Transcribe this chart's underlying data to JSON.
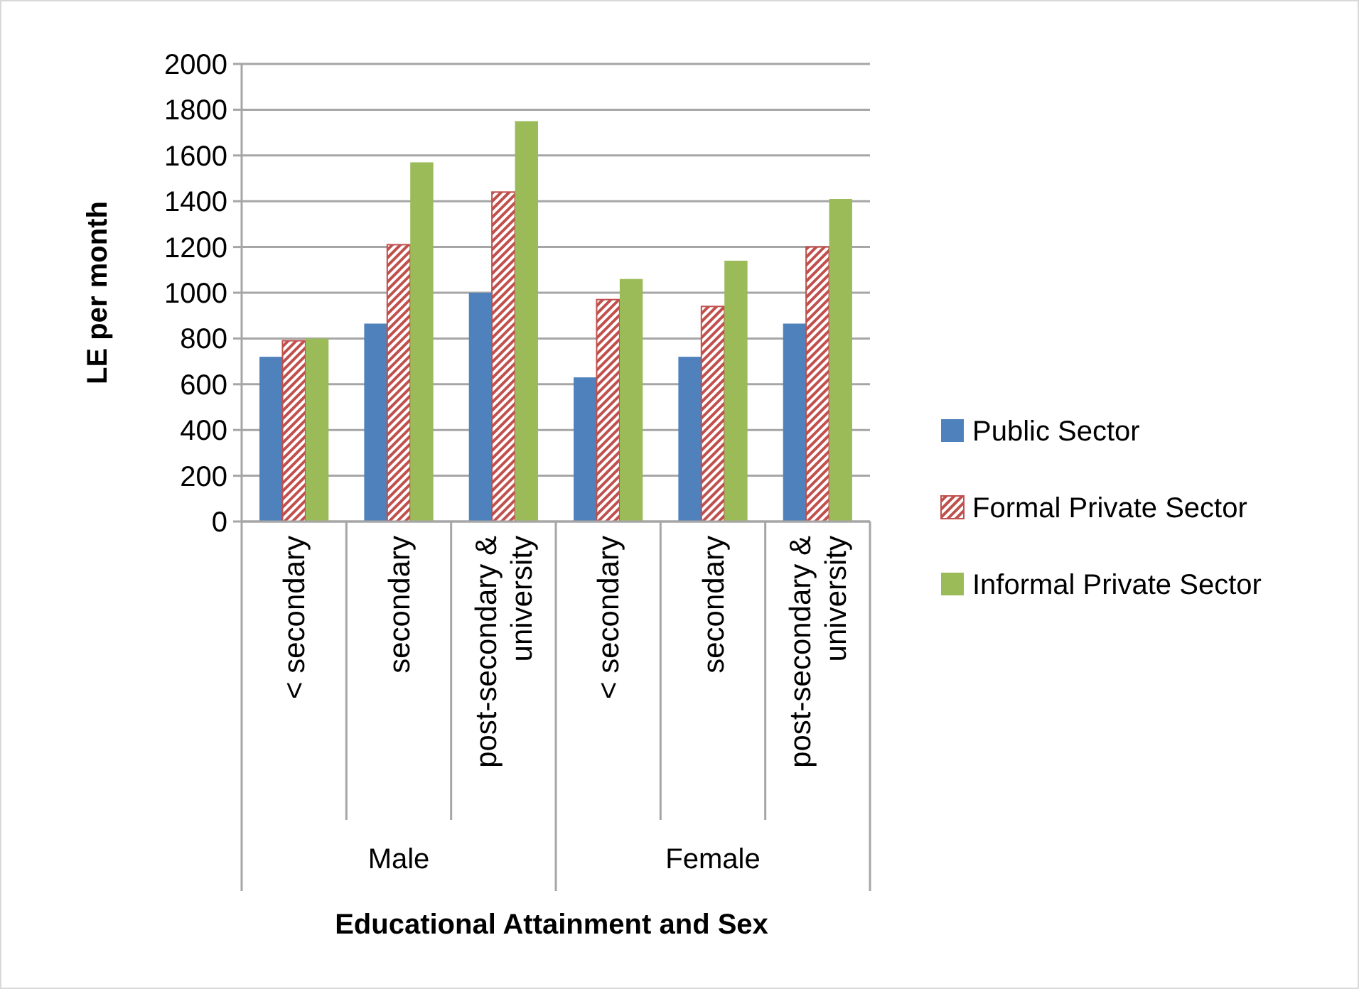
{
  "chart_data": {
    "type": "bar",
    "xlabel": "Educational Attainment and Sex",
    "ylabel": "LE per month",
    "categories": [
      "< secondary",
      "secondary",
      "post-secondary & university",
      "< secondary",
      "secondary",
      "post-secondary & university"
    ],
    "annotations": [
      "Male",
      "Female"
    ],
    "series": [
      {
        "name": "Public Sector",
        "color": "#4f81bd",
        "values": [
          720,
          865,
          1000,
          630,
          720,
          865
        ]
      },
      {
        "name": "Formal Private Sector",
        "color": "#c0504d",
        "values": [
          790,
          1210,
          1440,
          970,
          940,
          1200
        ]
      },
      {
        "name": "Informal Private Sector",
        "color": "#9bbb59",
        "values": [
          800,
          1570,
          1750,
          1060,
          1140,
          1410
        ]
      }
    ],
    "ylim": [
      0,
      2000
    ],
    "yticks": [
      0,
      200,
      400,
      600,
      800,
      1000,
      1200,
      1400,
      1600,
      1800,
      2000
    ],
    "grid": "y",
    "legend": "right"
  }
}
